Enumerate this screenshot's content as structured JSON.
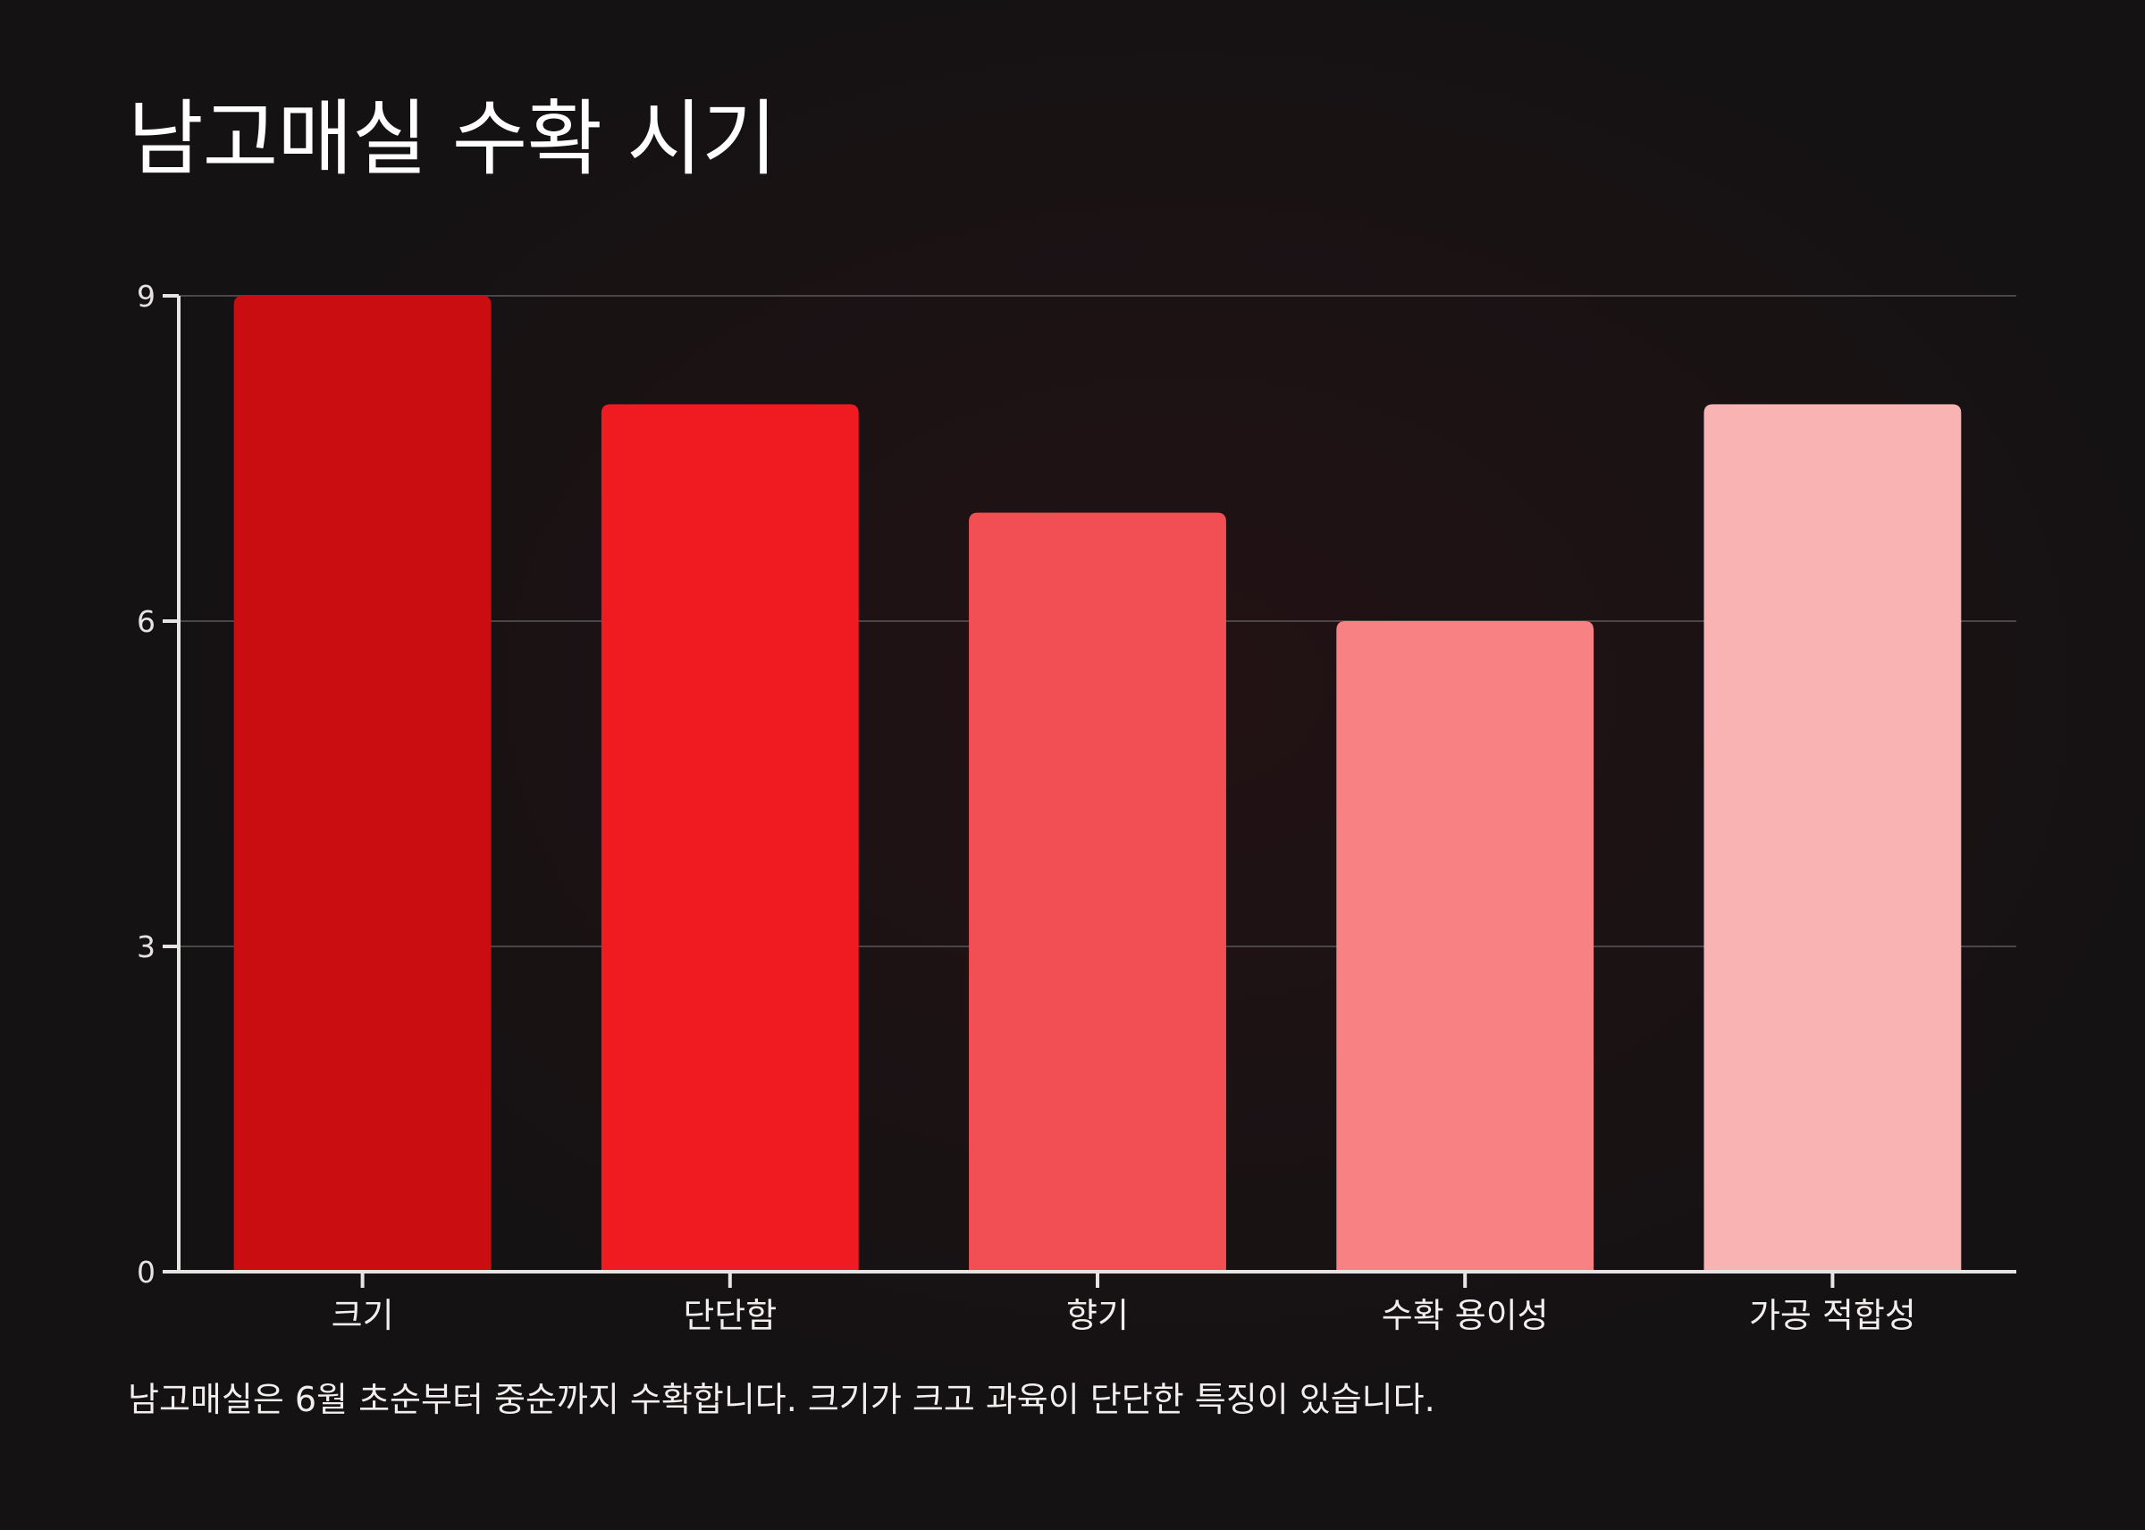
{
  "page": {
    "title": "남고매실 수확 시기",
    "caption": "남고매실은 6월 초순부터 중순까지 수확합니다. 크기가 크고 과육이 단단한 특징이 있습니다."
  },
  "colors": {
    "background": "#151213",
    "axis": "#e8e4e4",
    "grid": "#4a4546",
    "bars": [
      "#c90d11",
      "#ef1b20",
      "#f24f55",
      "#f78183",
      "#f9b3b3"
    ]
  },
  "chart_data": {
    "type": "bar",
    "title": "남고매실 수확 시기",
    "categories": [
      "크기",
      "단단함",
      "향기",
      "수확 용이성",
      "가공 적합성"
    ],
    "values": [
      9,
      8,
      7,
      6,
      8
    ],
    "xlabel": "",
    "ylabel": "",
    "ylim": [
      0,
      9
    ],
    "yticks": [
      0,
      3,
      6,
      9
    ],
    "grid": true,
    "legend": "none"
  }
}
